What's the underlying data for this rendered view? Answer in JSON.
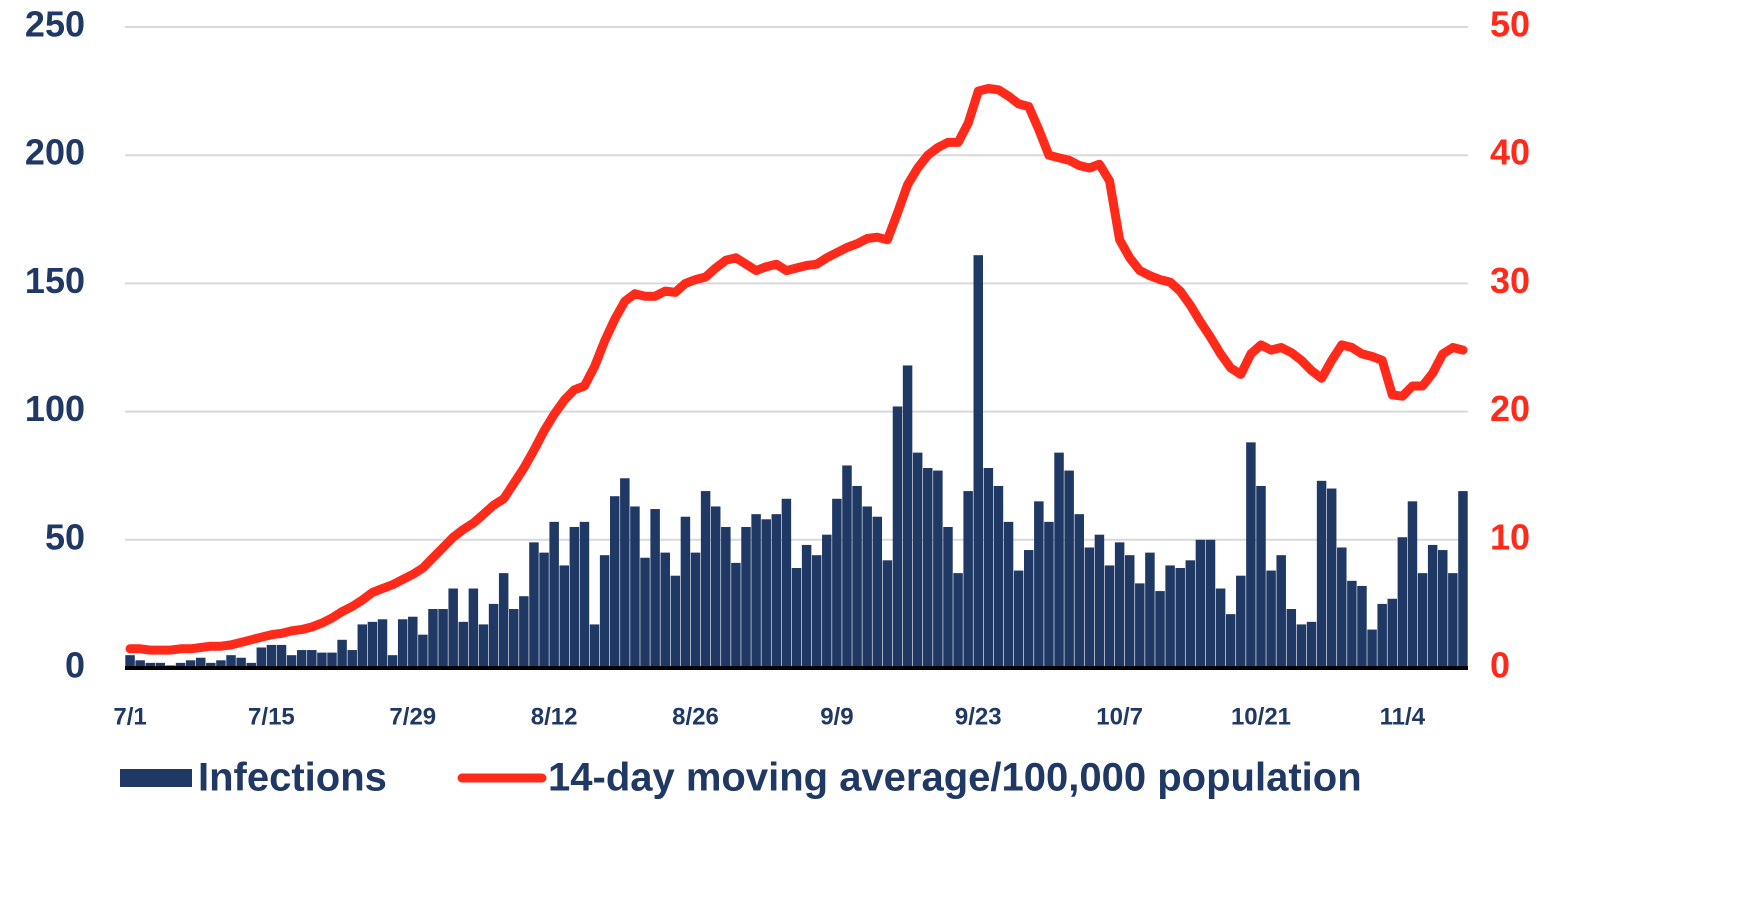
{
  "chart_data": {
    "type": "bar",
    "categories": [
      "7/1",
      null,
      null,
      null,
      null,
      null,
      null,
      null,
      null,
      null,
      null,
      null,
      null,
      null,
      "7/15",
      null,
      null,
      null,
      null,
      null,
      null,
      null,
      null,
      null,
      null,
      null,
      null,
      null,
      "7/29",
      null,
      null,
      null,
      null,
      null,
      null,
      null,
      null,
      null,
      null,
      null,
      null,
      null,
      "8/12",
      null,
      null,
      null,
      null,
      null,
      null,
      null,
      null,
      null,
      null,
      null,
      null,
      null,
      "8/26",
      null,
      null,
      null,
      null,
      null,
      null,
      null,
      null,
      null,
      null,
      null,
      null,
      null,
      "9/9",
      null,
      null,
      null,
      null,
      null,
      null,
      null,
      null,
      null,
      null,
      null,
      null,
      null,
      "9/23",
      null,
      null,
      null,
      null,
      null,
      null,
      null,
      null,
      null,
      null,
      null,
      null,
      null,
      "10/7",
      null,
      null,
      null,
      null,
      null,
      null,
      null,
      null,
      null,
      null,
      null,
      null,
      null,
      "10/21",
      null,
      null,
      null,
      null,
      null,
      null,
      null,
      null,
      null,
      null,
      null,
      null,
      null,
      "11/4",
      null,
      null,
      null,
      null,
      null,
      null
    ],
    "series": [
      {
        "name": "Infections",
        "type": "bar",
        "color": "#1f3864",
        "values": [
          5,
          3,
          2,
          2,
          1,
          2,
          3,
          4,
          2,
          3,
          5,
          4,
          2,
          8,
          9,
          9,
          5,
          7,
          7,
          6,
          6,
          11,
          7,
          17,
          18,
          19,
          5,
          19,
          20,
          13,
          23,
          23,
          31,
          18,
          31,
          17,
          25,
          37,
          23,
          28,
          49,
          45,
          57,
          40,
          55,
          57,
          17,
          44,
          67,
          74,
          63,
          43,
          62,
          45,
          36,
          59,
          45,
          69,
          63,
          55,
          41,
          55,
          60,
          58,
          60,
          66,
          39,
          48,
          44,
          52,
          66,
          79,
          71,
          63,
          59,
          42,
          102,
          118,
          84,
          78,
          77,
          55,
          37,
          69,
          161,
          78,
          71,
          57,
          38,
          46,
          65,
          57,
          84,
          77,
          60,
          47,
          52,
          40,
          49,
          44,
          33,
          45,
          30,
          40,
          39,
          42,
          50,
          50,
          31,
          21,
          36,
          88,
          71,
          38,
          44,
          23,
          17,
          18,
          73,
          70,
          47,
          34,
          32,
          15,
          25,
          27,
          51,
          65,
          37,
          48,
          46,
          37,
          69
        ]
      },
      {
        "name": "14-day moving average/100,000 population",
        "type": "line",
        "color": "#ff2a1a",
        "axis": "y2",
        "values": [
          1.5,
          1.5,
          1.4,
          1.4,
          1.4,
          1.5,
          1.5,
          1.6,
          1.7,
          1.7,
          1.8,
          2.0,
          2.2,
          2.4,
          2.6,
          2.7,
          2.9,
          3.0,
          3.2,
          3.5,
          3.9,
          4.4,
          4.8,
          5.3,
          5.9,
          6.2,
          6.5,
          6.9,
          7.3,
          7.8,
          8.6,
          9.4,
          10.2,
          10.8,
          11.3,
          12.0,
          12.7,
          13.2,
          14.4,
          15.6,
          17.0,
          18.5,
          19.8,
          20.9,
          21.7,
          22.0,
          23.5,
          25.5,
          27.2,
          28.6,
          29.2,
          29.0,
          29.0,
          29.4,
          29.3,
          30.0,
          30.3,
          30.5,
          31.2,
          31.8,
          32.0,
          31.5,
          31.0,
          31.3,
          31.5,
          31.0,
          31.2,
          31.4,
          31.5,
          32.0,
          32.4,
          32.8,
          33.1,
          33.5,
          33.6,
          33.4,
          35.5,
          37.7,
          39.0,
          40.0,
          40.6,
          41.0,
          41.0,
          42.5,
          45.0,
          45.2,
          45.1,
          44.6,
          44.0,
          43.8,
          42.0,
          40.0,
          39.8,
          39.6,
          39.2,
          39.0,
          39.3,
          38.0,
          33.4,
          32.0,
          31.0,
          30.6,
          30.3,
          30.1,
          29.4,
          28.3,
          27.0,
          25.8,
          24.5,
          23.4,
          22.9,
          24.5,
          25.2,
          24.8,
          25.0,
          24.6,
          24.0,
          23.2,
          22.6,
          24.0,
          25.2,
          25.0,
          24.5,
          24.3,
          24.0,
          21.3,
          21.2,
          22.0,
          22.0,
          23.0,
          24.5,
          25.0,
          24.8
        ]
      }
    ],
    "ylim": [
      0,
      250
    ],
    "yticks": [
      0,
      50,
      100,
      150,
      200,
      250
    ],
    "y2lim": [
      0,
      50
    ],
    "y2ticks": [
      0,
      10,
      20,
      30,
      40,
      50
    ],
    "grid": true,
    "legend": "bottom"
  }
}
